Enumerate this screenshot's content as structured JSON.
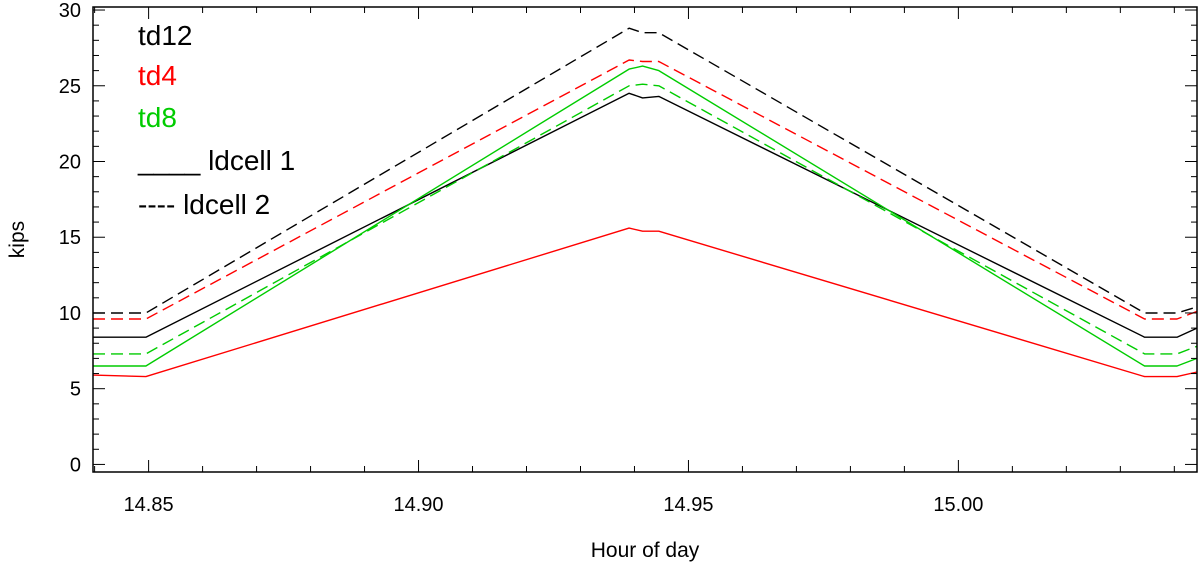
{
  "chart_data": {
    "type": "line",
    "title": "",
    "xlabel": "Hour of day",
    "ylabel": "kips",
    "xlim": [
      14.8397,
      15.0442
    ],
    "ylim": [
      -0.5,
      30.2
    ],
    "x_ticks": [
      {
        "value": 14.85,
        "label": "14.85"
      },
      {
        "value": 14.9,
        "label": "14.90"
      },
      {
        "value": 14.95,
        "label": "14.95"
      },
      {
        "value": 15.0,
        "label": "15.00"
      }
    ],
    "y_ticks": [
      {
        "value": 0,
        "label": "0"
      },
      {
        "value": 5,
        "label": "5"
      },
      {
        "value": 10,
        "label": "10"
      },
      {
        "value": 15,
        "label": "15"
      },
      {
        "value": 20,
        "label": "20"
      },
      {
        "value": 25,
        "label": "25"
      },
      {
        "value": 30,
        "label": "30"
      }
    ],
    "legend": {
      "placement": "top-left",
      "entries": [
        {
          "text": "td12",
          "color": "#000000"
        },
        {
          "text": "td4",
          "color": "#ff0000"
        },
        {
          "text": "td8",
          "color": "#00cc00"
        },
        {
          "text": "____ ldcell 1",
          "color": "#000000"
        },
        {
          "text": "---- ldcell 2",
          "color": "#000000"
        }
      ]
    },
    "series": [
      {
        "color": "#000000",
        "dash": "solid",
        "x": [
          14.8397,
          14.8495,
          14.939,
          14.9415,
          14.9445,
          15.0345,
          15.0405,
          15.0442
        ],
        "y": [
          8.4,
          8.4,
          24.5,
          24.2,
          24.3,
          8.4,
          8.4,
          9.0
        ]
      },
      {
        "color": "#000000",
        "dash": "dashed",
        "x": [
          14.8397,
          14.8495,
          14.939,
          14.9415,
          14.9445,
          15.0345,
          15.0405,
          15.0442
        ],
        "y": [
          10.0,
          10.0,
          28.8,
          28.5,
          28.5,
          10.0,
          10.0,
          10.4
        ]
      },
      {
        "color": "#ff0000",
        "dash": "solid",
        "x": [
          14.8397,
          14.8495,
          14.939,
          14.9415,
          14.9445,
          15.0345,
          15.0405,
          15.0442
        ],
        "y": [
          5.9,
          5.8,
          15.6,
          15.4,
          15.4,
          5.8,
          5.8,
          6.1
        ]
      },
      {
        "color": "#ff0000",
        "dash": "dashed",
        "x": [
          14.8397,
          14.8495,
          14.939,
          14.9415,
          14.9445,
          15.0345,
          15.0405,
          15.0442
        ],
        "y": [
          9.6,
          9.6,
          26.7,
          26.6,
          26.6,
          9.6,
          9.6,
          10.1
        ]
      },
      {
        "color": "#00cc00",
        "dash": "solid",
        "x": [
          14.8397,
          14.8495,
          14.939,
          14.9415,
          14.9445,
          15.0345,
          15.0405,
          15.0442
        ],
        "y": [
          6.5,
          6.5,
          26.1,
          26.3,
          26.0,
          6.5,
          6.5,
          7.0
        ]
      },
      {
        "color": "#00cc00",
        "dash": "dashed",
        "x": [
          14.8397,
          14.8495,
          14.939,
          14.9415,
          14.9445,
          15.0345,
          15.0405,
          15.0442
        ],
        "y": [
          7.3,
          7.3,
          25.0,
          25.1,
          25.0,
          7.3,
          7.3,
          7.8
        ]
      }
    ]
  }
}
